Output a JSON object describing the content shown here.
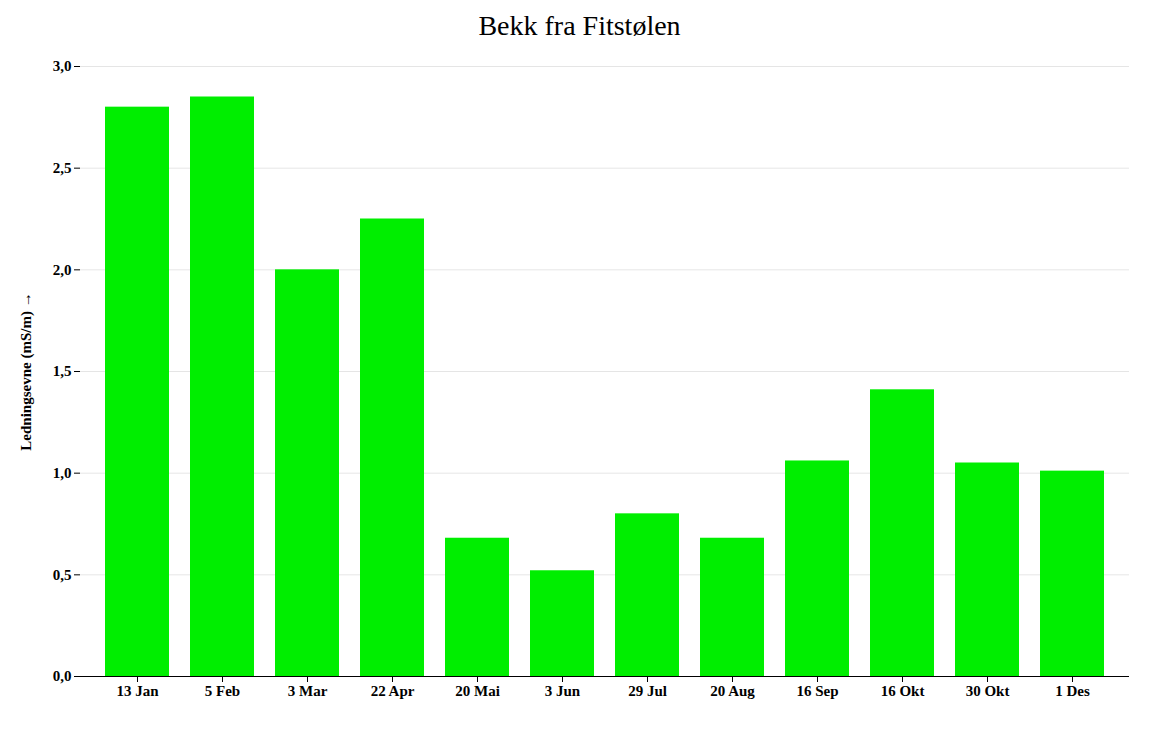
{
  "chart_data": {
    "type": "bar",
    "title": "Bekk fra Fitstølen",
    "ylabel": "Ledningsevne (mS/m)",
    "categories": [
      "13 Jan",
      "5 Feb",
      "3 Mar",
      "22 Apr",
      "20 Mai",
      "3 Jun",
      "29 Jul",
      "20 Aug",
      "16 Sep",
      "16 Okt",
      "30 Okt",
      "1 Des"
    ],
    "values": [
      2.8,
      2.85,
      2.0,
      2.25,
      0.68,
      0.52,
      0.8,
      0.68,
      1.06,
      1.41,
      1.05,
      1.01
    ],
    "color": "#00EE00",
    "ylim": [
      0.0,
      3.0
    ],
    "yticks": [
      {
        "value": 0.0,
        "label": "0,0"
      },
      {
        "value": 0.5,
        "label": "0,5"
      },
      {
        "value": 1.0,
        "label": "1,0"
      },
      {
        "value": 1.5,
        "label": "1,5"
      },
      {
        "value": 2.0,
        "label": "2,0"
      },
      {
        "value": 2.5,
        "label": "2,5"
      },
      {
        "value": 3.0,
        "label": "3,0"
      }
    ],
    "grid": true
  }
}
